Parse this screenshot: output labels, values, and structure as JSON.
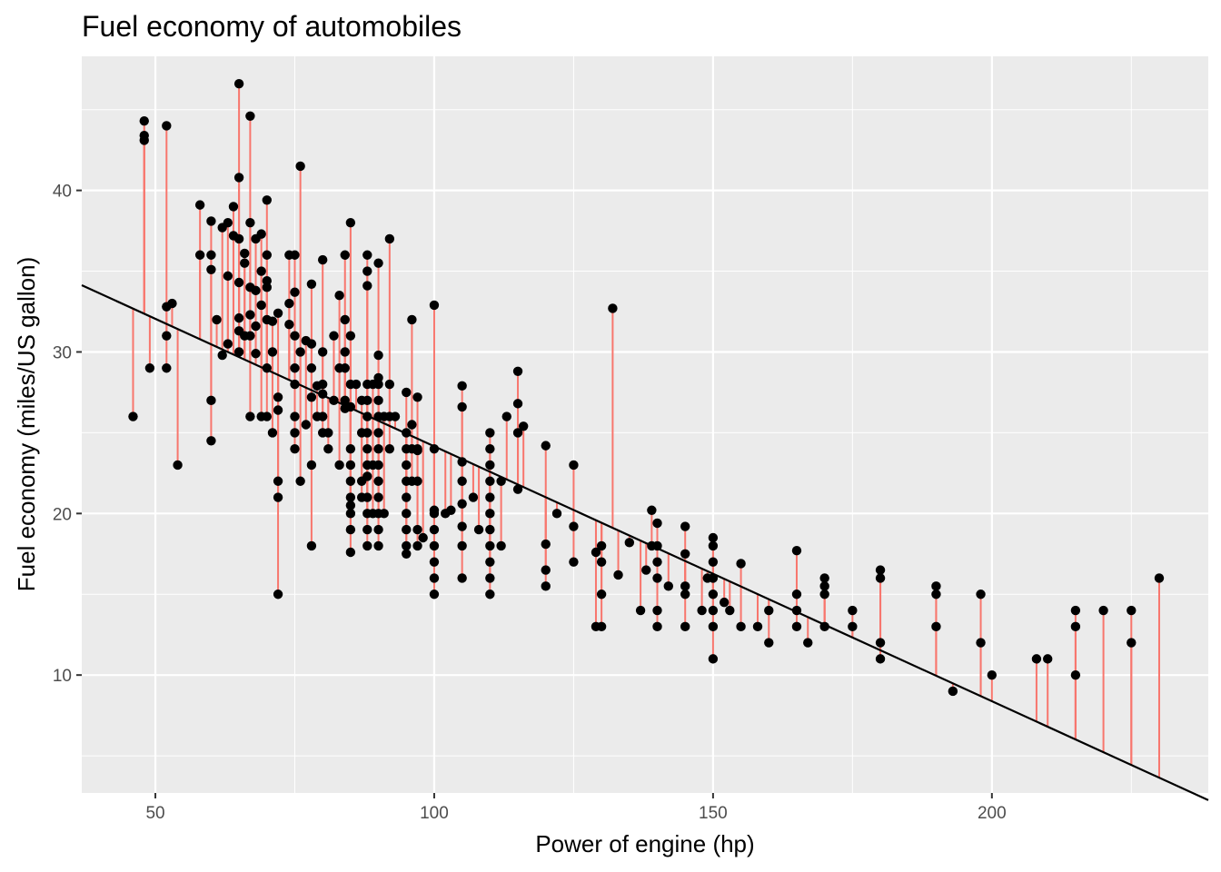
{
  "chart_data": {
    "type": "scatter",
    "title": "Fuel economy of automobiles",
    "xlabel": "Power of engine (hp)",
    "ylabel": "Fuel economy (miles/US gallon)",
    "xlim": [
      36.8,
      238.8
    ],
    "ylim": [
      2.7,
      48.3
    ],
    "x_ticks": [
      50,
      100,
      150,
      200
    ],
    "y_ticks": [
      10,
      20,
      30,
      40
    ],
    "grid": true,
    "legend": "none",
    "colors": {
      "panel_background": "#ebebeb",
      "grid": "#ffffff",
      "points": "#000000",
      "residual_segments": "#f8766d",
      "fit_line": "#000000"
    },
    "fit_line": {
      "intercept": 39.94,
      "slope": -0.1578
    },
    "points": [
      [
        46,
        26
      ],
      [
        48,
        44.3
      ],
      [
        48,
        43.4
      ],
      [
        48,
        43.1
      ],
      [
        49,
        29
      ],
      [
        52,
        44
      ],
      [
        52,
        32.8
      ],
      [
        52,
        31
      ],
      [
        52,
        29
      ],
      [
        53,
        33
      ],
      [
        54,
        23
      ],
      [
        58,
        39.1
      ],
      [
        58,
        36
      ],
      [
        60,
        38.1
      ],
      [
        60,
        36
      ],
      [
        60,
        35.1
      ],
      [
        60,
        27
      ],
      [
        60,
        24.5
      ],
      [
        61,
        32
      ],
      [
        62,
        29.8
      ],
      [
        62,
        37.7
      ],
      [
        63,
        38
      ],
      [
        63,
        34.7
      ],
      [
        63,
        30.5
      ],
      [
        64,
        39
      ],
      [
        64,
        37.2
      ],
      [
        65,
        46.6
      ],
      [
        65,
        40.8
      ],
      [
        65,
        37
      ],
      [
        65,
        34.3
      ],
      [
        65,
        32.1
      ],
      [
        65,
        31.3
      ],
      [
        65,
        30
      ],
      [
        66,
        36.1
      ],
      [
        66,
        35.5
      ],
      [
        66,
        31
      ],
      [
        67,
        44.6
      ],
      [
        67,
        38
      ],
      [
        67,
        34
      ],
      [
        67,
        32.3
      ],
      [
        67,
        31
      ],
      [
        67,
        26
      ],
      [
        68,
        37
      ],
      [
        68,
        33.8
      ],
      [
        68,
        31.6
      ],
      [
        68,
        29.9
      ],
      [
        69,
        37.3
      ],
      [
        69,
        35
      ],
      [
        69,
        32.9
      ],
      [
        69,
        26
      ],
      [
        70,
        39.4
      ],
      [
        70,
        36
      ],
      [
        70,
        34.4
      ],
      [
        70,
        34
      ],
      [
        70,
        32
      ],
      [
        70,
        29
      ],
      [
        70,
        26
      ],
      [
        71,
        31.9
      ],
      [
        71,
        30
      ],
      [
        71,
        25
      ],
      [
        72,
        32.4
      ],
      [
        72,
        27.2
      ],
      [
        72,
        26.4
      ],
      [
        72,
        22
      ],
      [
        72,
        21
      ],
      [
        72,
        15
      ],
      [
        74,
        36
      ],
      [
        74,
        33
      ],
      [
        74,
        31.7
      ],
      [
        75,
        36
      ],
      [
        75,
        33.7
      ],
      [
        75,
        31
      ],
      [
        75,
        29
      ],
      [
        75,
        28
      ],
      [
        75,
        26
      ],
      [
        75,
        25
      ],
      [
        75,
        24
      ],
      [
        76,
        41.5
      ],
      [
        76,
        30
      ],
      [
        76,
        22
      ],
      [
        77,
        30.7
      ],
      [
        77,
        25.5
      ],
      [
        78,
        34.2
      ],
      [
        78,
        30.5
      ],
      [
        78,
        29
      ],
      [
        78,
        27.2
      ],
      [
        78,
        23
      ],
      [
        78,
        18
      ],
      [
        79,
        26
      ],
      [
        79,
        27.9
      ],
      [
        80,
        35.7
      ],
      [
        80,
        30
      ],
      [
        80,
        28
      ],
      [
        80,
        26
      ],
      [
        80,
        25
      ],
      [
        80,
        27.4
      ],
      [
        81,
        25
      ],
      [
        81,
        24
      ],
      [
        82,
        31
      ],
      [
        82,
        27
      ],
      [
        83,
        33.5
      ],
      [
        83,
        29
      ],
      [
        83,
        23
      ],
      [
        84,
        36
      ],
      [
        84,
        32
      ],
      [
        84,
        30
      ],
      [
        84,
        29
      ],
      [
        84,
        27
      ],
      [
        84,
        26.5
      ],
      [
        85,
        38
      ],
      [
        85,
        31
      ],
      [
        85,
        28
      ],
      [
        85,
        26.6
      ],
      [
        85,
        24
      ],
      [
        85,
        23
      ],
      [
        85,
        22
      ],
      [
        85,
        21
      ],
      [
        85,
        20.5
      ],
      [
        85,
        20
      ],
      [
        85,
        19
      ],
      [
        85,
        17.6
      ],
      [
        86,
        28
      ],
      [
        87,
        27
      ],
      [
        87,
        25
      ],
      [
        87,
        22
      ],
      [
        87,
        21
      ],
      [
        88,
        36
      ],
      [
        88,
        35
      ],
      [
        88,
        34.1
      ],
      [
        88,
        28
      ],
      [
        88,
        27
      ],
      [
        88,
        26
      ],
      [
        88,
        25
      ],
      [
        88,
        24
      ],
      [
        88,
        23
      ],
      [
        88,
        22.3
      ],
      [
        88,
        21
      ],
      [
        88,
        20
      ],
      [
        88,
        19
      ],
      [
        88,
        18
      ],
      [
        89,
        28
      ],
      [
        89,
        23
      ],
      [
        89,
        20
      ],
      [
        90,
        35.5
      ],
      [
        90,
        29.8
      ],
      [
        90,
        28.4
      ],
      [
        90,
        28
      ],
      [
        90,
        27
      ],
      [
        90,
        26
      ],
      [
        90,
        25
      ],
      [
        90,
        24
      ],
      [
        90,
        23
      ],
      [
        90,
        22
      ],
      [
        90,
        21
      ],
      [
        90,
        20
      ],
      [
        90,
        19
      ],
      [
        90,
        18
      ],
      [
        91,
        26
      ],
      [
        91,
        20
      ],
      [
        92,
        37
      ],
      [
        92,
        28
      ],
      [
        92,
        26
      ],
      [
        92,
        24
      ],
      [
        93,
        26
      ],
      [
        95,
        27.5
      ],
      [
        95,
        25
      ],
      [
        95,
        24
      ],
      [
        95,
        23
      ],
      [
        95,
        22
      ],
      [
        95,
        21
      ],
      [
        95,
        20
      ],
      [
        95,
        19
      ],
      [
        95,
        18
      ],
      [
        95,
        17.5
      ],
      [
        96,
        32
      ],
      [
        96,
        25.5
      ],
      [
        96,
        24
      ],
      [
        96,
        22
      ],
      [
        97,
        27.2
      ],
      [
        97,
        24
      ],
      [
        97,
        23.9
      ],
      [
        97,
        22
      ],
      [
        97,
        19
      ],
      [
        97,
        18
      ],
      [
        98,
        18.5
      ],
      [
        100,
        32.9
      ],
      [
        100,
        24
      ],
      [
        100,
        20.2
      ],
      [
        100,
        20
      ],
      [
        100,
        19
      ],
      [
        100,
        18
      ],
      [
        100,
        17
      ],
      [
        100,
        16
      ],
      [
        100,
        15
      ],
      [
        102,
        20
      ],
      [
        103,
        20.2
      ],
      [
        105,
        27.9
      ],
      [
        105,
        26.6
      ],
      [
        105,
        23.2
      ],
      [
        105,
        22
      ],
      [
        105,
        20.6
      ],
      [
        105,
        19.2
      ],
      [
        105,
        18
      ],
      [
        105,
        16
      ],
      [
        107,
        21
      ],
      [
        108,
        19
      ],
      [
        110,
        25
      ],
      [
        110,
        24
      ],
      [
        110,
        23
      ],
      [
        110,
        22
      ],
      [
        110,
        21
      ],
      [
        110,
        20
      ],
      [
        110,
        19
      ],
      [
        110,
        18
      ],
      [
        110,
        17
      ],
      [
        110,
        16
      ],
      [
        110,
        15
      ],
      [
        112,
        22
      ],
      [
        112,
        18
      ],
      [
        113,
        26
      ],
      [
        115,
        28.8
      ],
      [
        115,
        26.8
      ],
      [
        115,
        25
      ],
      [
        115,
        21.5
      ],
      [
        116,
        25.4
      ],
      [
        120,
        24.2
      ],
      [
        120,
        18.1
      ],
      [
        120,
        16.5
      ],
      [
        120,
        15.5
      ],
      [
        122,
        20
      ],
      [
        125,
        23
      ],
      [
        125,
        19.2
      ],
      [
        125,
        17
      ],
      [
        129,
        17.6
      ],
      [
        129,
        13
      ],
      [
        130,
        18
      ],
      [
        130,
        17
      ],
      [
        130,
        15
      ],
      [
        130,
        13
      ],
      [
        132,
        32.7
      ],
      [
        133,
        16.2
      ],
      [
        135,
        18.2
      ],
      [
        137,
        14
      ],
      [
        138,
        16.5
      ],
      [
        139,
        20.2
      ],
      [
        139,
        18
      ],
      [
        140,
        19.4
      ],
      [
        140,
        18
      ],
      [
        140,
        17
      ],
      [
        140,
        16
      ],
      [
        140,
        14
      ],
      [
        140,
        13
      ],
      [
        142,
        15.5
      ],
      [
        145,
        19.2
      ],
      [
        145,
        17.5
      ],
      [
        145,
        15.5
      ],
      [
        145,
        15
      ],
      [
        145,
        13
      ],
      [
        148,
        14
      ],
      [
        149,
        16
      ],
      [
        150,
        18.5
      ],
      [
        150,
        18
      ],
      [
        150,
        17
      ],
      [
        150,
        16
      ],
      [
        150,
        15
      ],
      [
        150,
        14
      ],
      [
        150,
        13
      ],
      [
        150,
        11
      ],
      [
        152,
        14.5
      ],
      [
        153,
        14
      ],
      [
        155,
        16.9
      ],
      [
        155,
        13
      ],
      [
        158,
        13
      ],
      [
        160,
        14
      ],
      [
        160,
        12
      ],
      [
        165,
        17.7
      ],
      [
        165,
        15
      ],
      [
        165,
        14
      ],
      [
        165,
        13
      ],
      [
        167,
        12
      ],
      [
        170,
        16
      ],
      [
        170,
        15.5
      ],
      [
        170,
        15
      ],
      [
        170,
        13
      ],
      [
        175,
        14
      ],
      [
        175,
        13
      ],
      [
        180,
        16.5
      ],
      [
        180,
        16
      ],
      [
        180,
        12
      ],
      [
        180,
        11
      ],
      [
        190,
        15.5
      ],
      [
        190,
        15
      ],
      [
        190,
        13
      ],
      [
        193,
        9
      ],
      [
        198,
        15
      ],
      [
        198,
        12
      ],
      [
        200,
        10
      ],
      [
        208,
        11
      ],
      [
        210,
        11
      ],
      [
        215,
        14
      ],
      [
        215,
        13
      ],
      [
        215,
        10
      ],
      [
        220,
        14
      ],
      [
        225,
        14
      ],
      [
        225,
        12
      ],
      [
        230,
        16
      ]
    ]
  }
}
